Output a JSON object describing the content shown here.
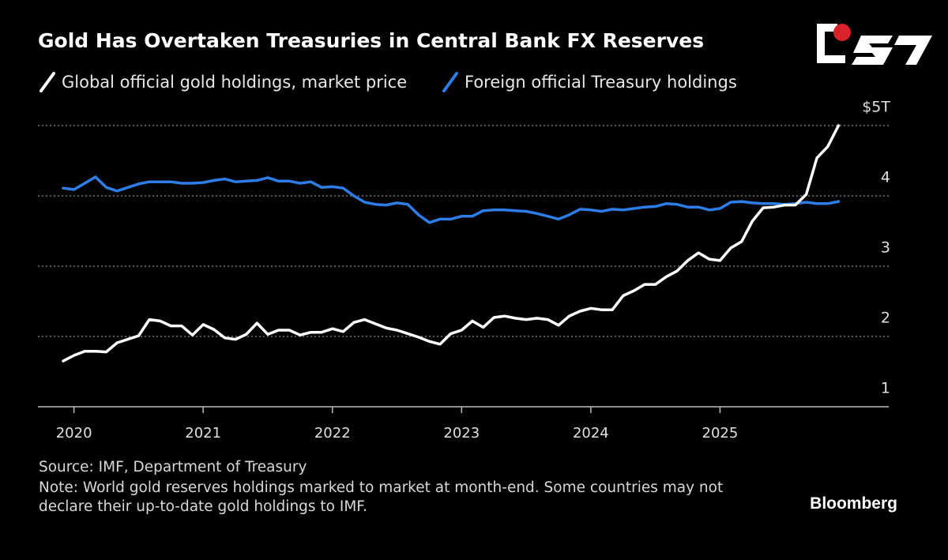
{
  "chart_data": {
    "type": "line",
    "title": "Gold Has Overtaken Treasuries in Central Bank FX Reserves",
    "source": "Source: IMF, Department of Treasury",
    "note": "Note: World gold reserves holdings marked to market at month-end. Some countries may not declare their up-to-date gold holdings to IMF.",
    "brand": "Bloomberg",
    "categories": [
      null,
      "2020",
      null,
      null,
      null,
      null,
      null,
      null,
      null,
      null,
      null,
      null,
      null,
      "2021",
      null,
      null,
      null,
      null,
      null,
      null,
      null,
      null,
      null,
      null,
      null,
      "2022",
      null,
      null,
      null,
      null,
      null,
      null,
      null,
      null,
      null,
      null,
      null,
      "2023",
      null,
      null,
      null,
      null,
      null,
      null,
      null,
      null,
      null,
      null,
      null,
      "2024",
      null,
      null,
      null,
      null,
      null,
      null,
      null,
      null,
      null,
      null,
      null,
      "2025",
      null,
      null,
      null,
      null,
      null,
      null,
      null,
      null,
      null,
      null,
      null
    ],
    "series": [
      {
        "name": "Global official gold holdings, market price",
        "color": "#ffffff",
        "values": [
          1.65,
          1.73,
          1.79,
          1.79,
          1.78,
          1.91,
          1.96,
          2.01,
          2.24,
          2.22,
          2.15,
          2.15,
          2.02,
          2.17,
          2.1,
          1.98,
          1.96,
          2.03,
          2.19,
          2.03,
          2.09,
          2.09,
          2.02,
          2.06,
          2.06,
          2.11,
          2.07,
          2.2,
          2.24,
          2.18,
          2.12,
          2.09,
          2.04,
          1.99,
          1.93,
          1.89,
          2.04,
          2.09,
          2.22,
          2.13,
          2.27,
          2.29,
          2.26,
          2.24,
          2.26,
          2.24,
          2.16,
          2.29,
          2.36,
          2.4,
          2.38,
          2.38,
          2.58,
          2.65,
          2.74,
          2.74,
          2.85,
          2.93,
          3.08,
          3.19,
          3.1,
          3.08,
          3.26,
          3.35,
          3.64,
          3.83,
          3.84,
          3.87,
          3.87,
          4.02,
          4.54,
          4.7,
          5.0
        ]
      },
      {
        "name": "Foreign official Treasury holdings",
        "color": "#2d7de6",
        "values": [
          4.11,
          4.09,
          4.18,
          4.27,
          4.12,
          4.07,
          4.12,
          4.17,
          4.2,
          4.2,
          4.2,
          4.18,
          4.18,
          4.19,
          4.22,
          4.24,
          4.2,
          4.21,
          4.22,
          4.26,
          4.21,
          4.21,
          4.18,
          4.2,
          4.12,
          4.13,
          4.11,
          4.0,
          3.91,
          3.88,
          3.87,
          3.9,
          3.88,
          3.73,
          3.62,
          3.67,
          3.67,
          3.71,
          3.71,
          3.79,
          3.8,
          3.8,
          3.79,
          3.78,
          3.75,
          3.71,
          3.67,
          3.73,
          3.81,
          3.8,
          3.78,
          3.81,
          3.8,
          3.82,
          3.84,
          3.85,
          3.89,
          3.88,
          3.84,
          3.84,
          3.8,
          3.82,
          3.91,
          3.92,
          3.9,
          3.89,
          3.89,
          3.88,
          3.89,
          3.91,
          3.89,
          3.89,
          3.92
        ]
      }
    ],
    "ylim": [
      1,
      5
    ],
    "yticks": [
      1,
      2,
      3,
      4,
      {
        "value": 5,
        "label": "$5T"
      }
    ],
    "grid": true,
    "grid_style": "dotted"
  }
}
